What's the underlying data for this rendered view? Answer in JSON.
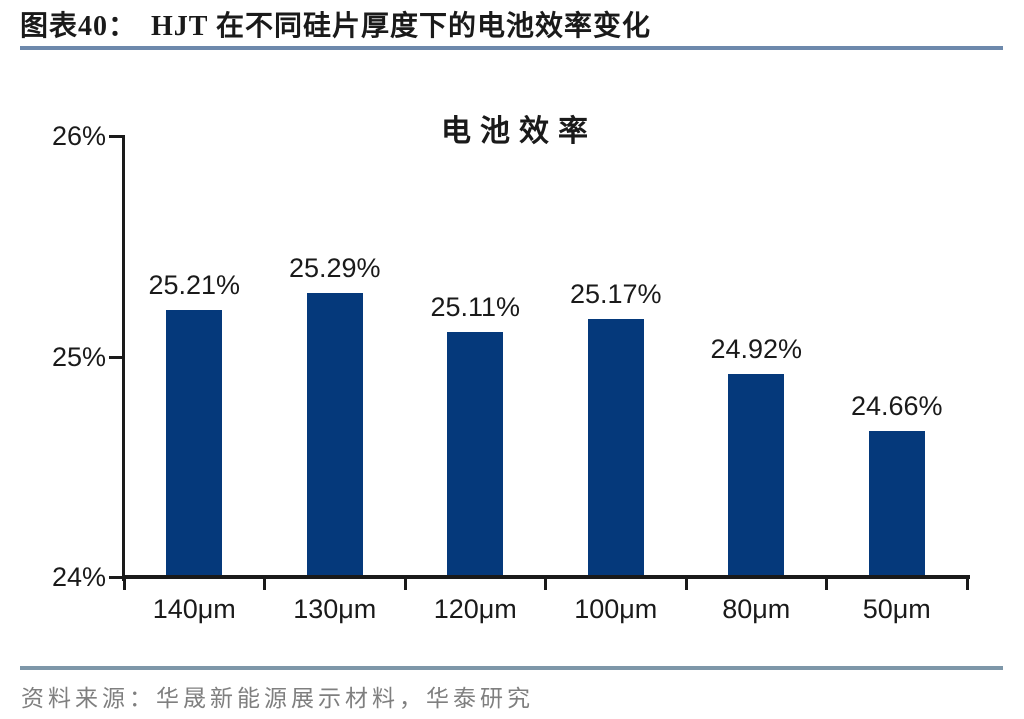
{
  "header": {
    "figure_label": "图表40：",
    "figure_title": "HJT 在不同硅片厚度下的电池效率变化"
  },
  "footer": {
    "source_text": "资料来源：华晟新能源展示材料，华泰研究"
  },
  "colors": {
    "bar": "#05397B",
    "axis": "#1A1A1A",
    "title_rule": "#6D89AC",
    "footer_rule": "#7E97A9",
    "source_text": "#7F7F7F",
    "text": "#1A1A1A"
  },
  "chart_data": {
    "type": "bar",
    "title": "电池效率",
    "categories": [
      "140μm",
      "130μm",
      "120μm",
      "100μm",
      "80μm",
      "50μm"
    ],
    "values": [
      25.21,
      25.29,
      25.11,
      25.17,
      24.92,
      24.66
    ],
    "value_labels": [
      "25.21%",
      "25.29%",
      "25.11%",
      "25.17%",
      "24.92%",
      "24.66%"
    ],
    "xlabel": "",
    "ylabel": "",
    "ylim": [
      24,
      26
    ],
    "yticks": [
      24,
      25,
      26
    ],
    "ytick_labels": [
      "24%",
      "25%",
      "26%"
    ],
    "grid": false,
    "legend": "none"
  }
}
